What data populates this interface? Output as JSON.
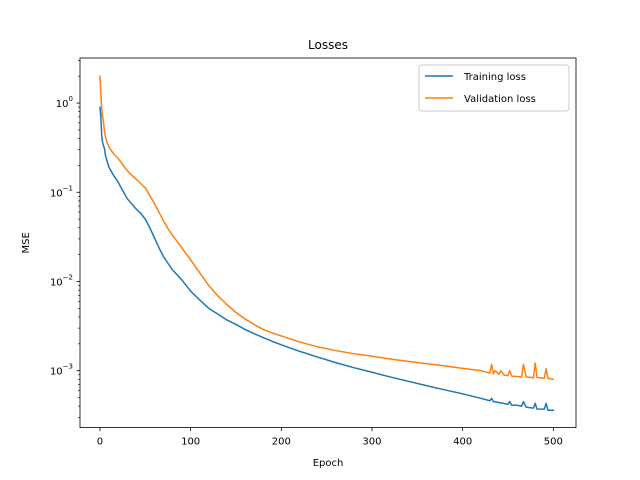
{
  "chart_data": {
    "type": "line",
    "title": "Losses",
    "xlabel": "Epoch",
    "ylabel": "MSE",
    "xlim": [
      -22,
      525
    ],
    "ylim": [
      0.00023,
      3.2
    ],
    "yscale": "log",
    "xticks": [
      0,
      100,
      200,
      300,
      400,
      500
    ],
    "yticks": [
      {
        "value": 0.001,
        "base": "10",
        "exp": "−3"
      },
      {
        "value": 0.01,
        "base": "10",
        "exp": "−2"
      },
      {
        "value": 0.1,
        "base": "10",
        "exp": "−1"
      },
      {
        "value": 1,
        "base": "10",
        "exp": "0"
      }
    ],
    "grid": false,
    "legend_position": "top-right",
    "series": [
      {
        "name": "Training loss",
        "color": "#1f77b4",
        "x": [
          0,
          1,
          2,
          3,
          4,
          5,
          6,
          8,
          10,
          12,
          15,
          20,
          25,
          30,
          35,
          40,
          45,
          50,
          55,
          60,
          65,
          70,
          75,
          80,
          90,
          100,
          110,
          120,
          130,
          140,
          150,
          160,
          170,
          180,
          190,
          200,
          220,
          240,
          260,
          280,
          300,
          320,
          340,
          360,
          380,
          400,
          420,
          430,
          432,
          434,
          440,
          450,
          452,
          454,
          460,
          465,
          467,
          470,
          478,
          480,
          482,
          490,
          492,
          494,
          500
        ],
        "y": [
          0.9,
          0.7,
          0.42,
          0.36,
          0.33,
          0.31,
          0.26,
          0.22,
          0.19,
          0.175,
          0.155,
          0.13,
          0.105,
          0.085,
          0.074,
          0.065,
          0.058,
          0.05,
          0.04,
          0.031,
          0.024,
          0.019,
          0.016,
          0.0135,
          0.0105,
          0.0078,
          0.0062,
          0.005,
          0.0043,
          0.0037,
          0.0033,
          0.0029,
          0.0026,
          0.00235,
          0.00213,
          0.00195,
          0.00165,
          0.00142,
          0.00123,
          0.00108,
          0.00096,
          0.00085,
          0.00076,
          0.00068,
          0.00061,
          0.00055,
          0.00049,
          0.00046,
          0.00049,
          0.00045,
          0.00044,
          0.00042,
          0.00045,
          0.00041,
          0.00041,
          0.0004,
          0.00045,
          0.00039,
          0.00038,
          0.00043,
          0.00037,
          0.00037,
          0.00043,
          0.00036,
          0.00036
        ]
      },
      {
        "name": "Validation loss",
        "color": "#ff7f0e",
        "x": [
          0,
          1,
          2,
          3,
          4,
          5,
          6,
          8,
          10,
          12,
          15,
          20,
          25,
          30,
          35,
          40,
          45,
          50,
          55,
          60,
          65,
          70,
          75,
          80,
          90,
          100,
          110,
          120,
          130,
          140,
          150,
          160,
          170,
          180,
          190,
          200,
          220,
          240,
          260,
          280,
          300,
          320,
          340,
          360,
          380,
          400,
          420,
          430,
          432,
          434,
          436,
          440,
          442,
          446,
          450,
          452,
          454,
          460,
          465,
          467,
          470,
          475,
          478,
          480,
          482,
          490,
          492,
          494,
          500
        ],
        "y": [
          2.0,
          1.3,
          0.85,
          0.7,
          0.6,
          0.48,
          0.42,
          0.36,
          0.32,
          0.3,
          0.27,
          0.24,
          0.205,
          0.175,
          0.155,
          0.14,
          0.125,
          0.112,
          0.092,
          0.075,
          0.06,
          0.048,
          0.039,
          0.033,
          0.024,
          0.0175,
          0.0125,
          0.009,
          0.0069,
          0.0055,
          0.0045,
          0.0038,
          0.0033,
          0.0029,
          0.00265,
          0.00245,
          0.0021,
          0.00185,
          0.00168,
          0.00155,
          0.00145,
          0.00135,
          0.00127,
          0.0012,
          0.00113,
          0.00106,
          0.001,
          0.00094,
          0.00118,
          0.00092,
          0.001,
          0.00091,
          0.001,
          0.00089,
          0.00088,
          0.001,
          0.00087,
          0.00086,
          0.00085,
          0.00118,
          0.00085,
          0.00084,
          0.00083,
          0.00122,
          0.00084,
          0.00082,
          0.00105,
          0.00082,
          0.0008
        ]
      }
    ]
  }
}
